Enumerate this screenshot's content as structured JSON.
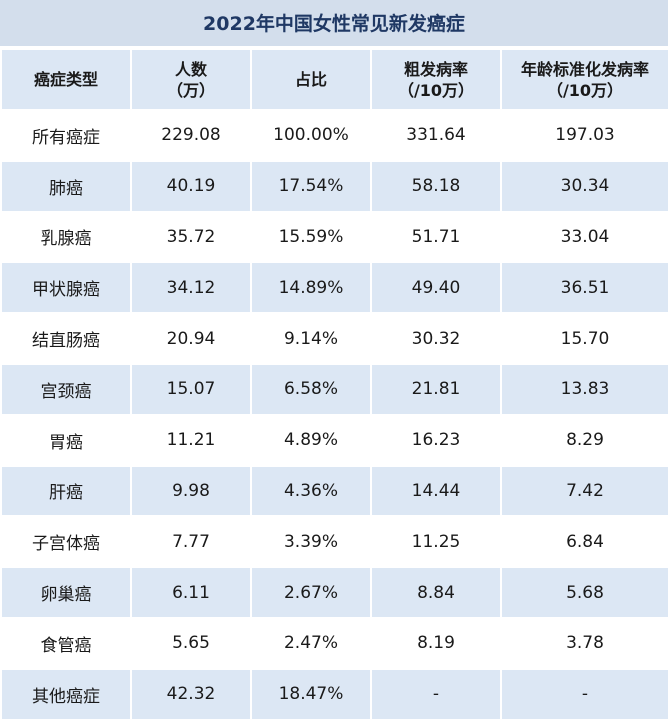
{
  "title": "2022年中国女性常见新发癌症",
  "table": {
    "header": [
      "癌症类型",
      "人数\n（万）",
      "占比",
      "粗发病率\n（/10万）",
      "年龄标准化发病率\n（/10万）"
    ],
    "rows": [
      [
        "所有癌症",
        "229.08",
        "100.00%",
        "331.64",
        "197.03"
      ],
      [
        "肺癌",
        "40.19",
        "17.54%",
        "58.18",
        "30.34"
      ],
      [
        "乳腺癌",
        "35.72",
        "15.59%",
        "51.71",
        "33.04"
      ],
      [
        "甲状腺癌",
        "34.12",
        "14.89%",
        "49.40",
        "36.51"
      ],
      [
        "结直肠癌",
        "20.94",
        "9.14%",
        "30.32",
        "15.70"
      ],
      [
        "宫颈癌",
        "15.07",
        "6.58%",
        "21.81",
        "13.83"
      ],
      [
        "胃癌",
        "11.21",
        "4.89%",
        "16.23",
        "8.29"
      ],
      [
        "肝癌",
        "9.98",
        "4.36%",
        "14.44",
        "7.42"
      ],
      [
        "子宫体癌",
        "7.77",
        "3.39%",
        "11.25",
        "6.84"
      ],
      [
        "卵巢癌",
        "6.11",
        "2.67%",
        "8.84",
        "5.68"
      ],
      [
        "食管癌",
        "5.65",
        "2.47%",
        "8.19",
        "3.78"
      ],
      [
        "其他癌症",
        "42.32",
        "18.47%",
        "-",
        "-"
      ]
    ]
  }
}
